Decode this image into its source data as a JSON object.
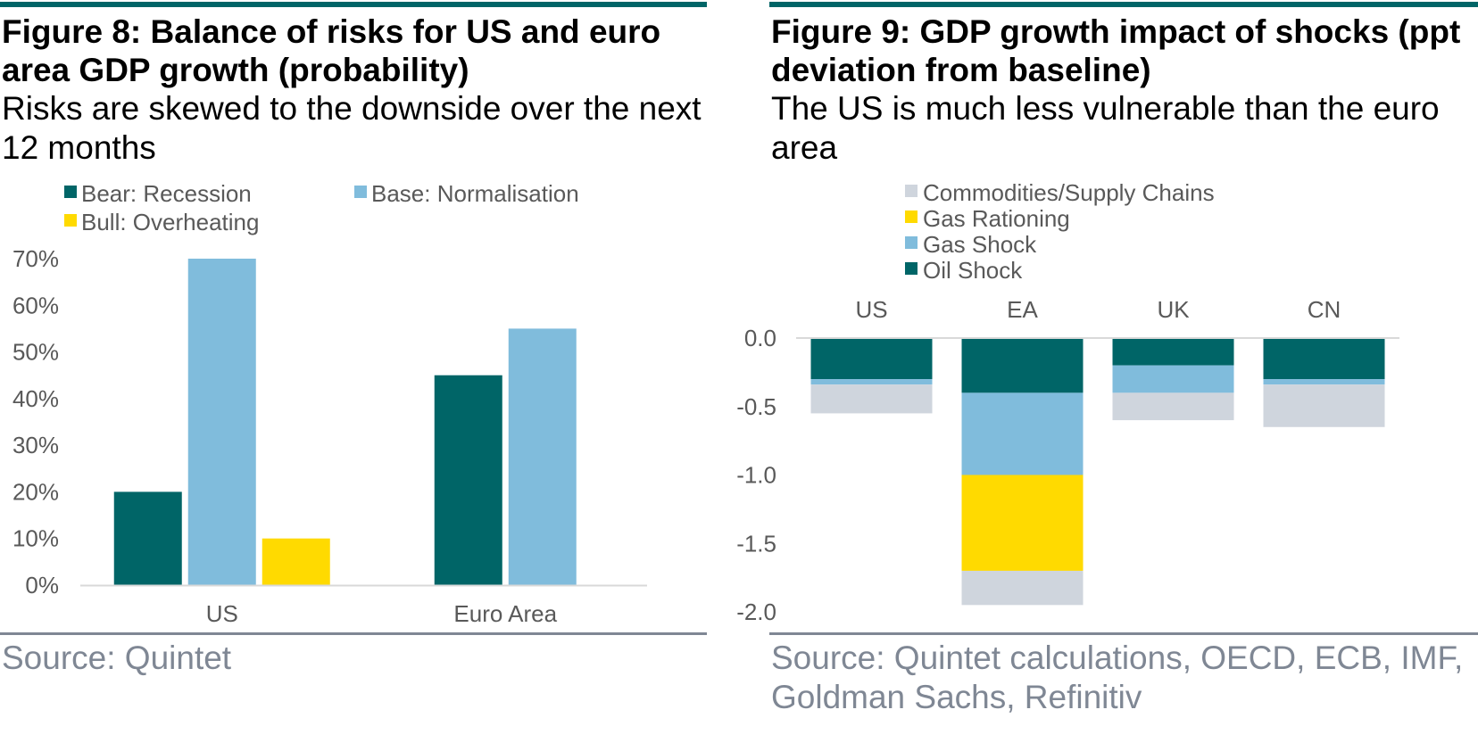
{
  "colors": {
    "rule": "#006567",
    "grey_rule": "#7f8794",
    "axis": "#d9d9d9",
    "label": "#595959",
    "source_text": "#7f8794"
  },
  "left": {
    "title": "Figure 8: Balance of risks for US and euro area GDP growth (probability)",
    "subtitle": "Risks are skewed to the downside over the next 12 months",
    "source": "Source: Quintet"
  },
  "right": {
    "title": "Figure 9: GDP growth impact of shocks (ppt deviation from baseline)",
    "subtitle": "The US is much less vulnerable than the euro area",
    "source": "Source: Quintet calculations, OECD, ECB, IMF, Goldman Sachs, Refinitiv"
  },
  "chart_data": [
    {
      "type": "bar",
      "categories": [
        "US",
        "Euro Area"
      ],
      "series": [
        {
          "name": "Bear: Recession",
          "color": "#006567",
          "values": [
            20,
            45
          ]
        },
        {
          "name": "Base: Normalisation",
          "color": "#80bcdc",
          "values": [
            70,
            55
          ]
        },
        {
          "name": "Bull: Overheating",
          "color": "#ffda00",
          "values": [
            10,
            null
          ]
        }
      ],
      "ylim": [
        0,
        70
      ],
      "yticks": [
        "0%",
        "10%",
        "20%",
        "30%",
        "40%",
        "50%",
        "60%",
        "70%"
      ],
      "ytick_values": [
        0,
        10,
        20,
        30,
        40,
        50,
        60,
        70
      ],
      "legend_position": "top",
      "grid": false
    },
    {
      "type": "bar",
      "stacked": true,
      "categories": [
        "US",
        "EA",
        "UK",
        "CN"
      ],
      "series": [
        {
          "name": "Oil Shock",
          "color": "#006567",
          "values": [
            -0.3,
            -0.4,
            -0.2,
            -0.3
          ]
        },
        {
          "name": "Gas Shock",
          "color": "#80bcdc",
          "values": [
            -0.04,
            -0.6,
            -0.2,
            -0.04
          ]
        },
        {
          "name": "Gas Rationing",
          "color": "#ffda00",
          "values": [
            0,
            -0.7,
            0,
            0
          ]
        },
        {
          "name": "Commodities/Supply Chains",
          "color": "#cfd5dd",
          "values": [
            -0.21,
            -0.25,
            -0.2,
            -0.31
          ]
        }
      ],
      "legend_order": [
        "Commodities/Supply Chains",
        "Gas Rationing",
        "Gas Shock",
        "Oil Shock"
      ],
      "ylim": [
        -2.0,
        0.0
      ],
      "yticks": [
        "0.0",
        "-0.5",
        "-1.0",
        "-1.5",
        "-2.0"
      ],
      "ytick_values": [
        0,
        -0.5,
        -1.0,
        -1.5,
        -2.0
      ],
      "category_labels_position": "top",
      "legend_position": "top",
      "grid": false
    }
  ]
}
